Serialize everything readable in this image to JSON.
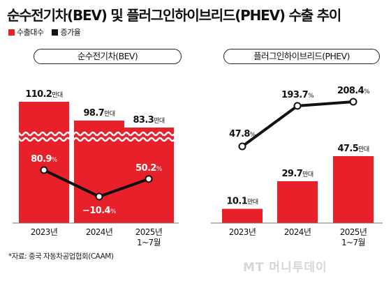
{
  "title": "순수전기차(BEV) 및 플러그인하이브리드(PHEV) 수출 추이",
  "legend": [
    {
      "label": "수출대수",
      "color": "#e8202a"
    },
    {
      "label": "증가율",
      "color": "#111111"
    }
  ],
  "source": "*자료: 중국 자동차공업협회(CAAM)",
  "logo_text": "MT 머니투데이",
  "chart_data": [
    {
      "type": "bar",
      "title": "순수전기차(BEV)",
      "categories": [
        "2023년",
        "2024년",
        "2025년\n1~7월"
      ],
      "series": [
        {
          "name": "수출대수",
          "unit": "만대",
          "values": [
            110.2,
            98.7,
            83.3
          ]
        },
        {
          "name": "증가율",
          "unit": "%",
          "type": "line",
          "values": [
            80.9,
            -10.4,
            50.2
          ]
        }
      ],
      "bar_labels": [
        "110.2",
        "98.7",
        "83.3"
      ],
      "line_labels": [
        "80.9",
        "−10.4",
        "50.2"
      ],
      "axis_break": true
    },
    {
      "type": "bar",
      "title": "플러그인하이브리드(PHEV)",
      "categories": [
        "2023년",
        "2024년",
        "2025년\n1~7월"
      ],
      "series": [
        {
          "name": "수출대수",
          "unit": "만대",
          "values": [
            10.1,
            29.7,
            47.5
          ]
        },
        {
          "name": "증가율",
          "unit": "%",
          "type": "line",
          "values": [
            47.8,
            193.7,
            208.4
          ]
        }
      ],
      "bar_labels": [
        "10.1",
        "29.7",
        "47.5"
      ],
      "line_labels": [
        "47.8",
        "193.7",
        "208.4"
      ],
      "axis_break": false
    }
  ]
}
